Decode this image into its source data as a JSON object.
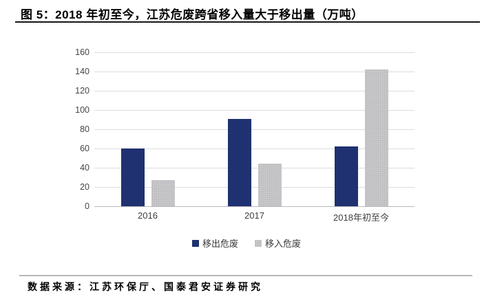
{
  "page": {
    "title": "图 5：2018 年初至今，江苏危废跨省移入量大于移出量（万吨）",
    "footer": "数据来源：江苏环保厅、国泰君安证券研究"
  },
  "colors": {
    "series_out": "#1F3170",
    "series_in": "#C6C6C9",
    "gridline": "#DCDCDC",
    "axis_line": "#B9B9BC",
    "axis_text": "#454545",
    "title_rule": "#161616"
  },
  "chart_data": {
    "type": "bar",
    "categories": [
      "2016",
      "2017",
      "2018年初至今"
    ],
    "series": [
      {
        "key": "out",
        "name": "移出危废",
        "color": "#1F3170",
        "values": [
          60,
          91,
          62
        ]
      },
      {
        "key": "in",
        "name": "移入危废",
        "color": "#C6C6C9",
        "values": [
          27,
          44,
          142
        ]
      }
    ],
    "ylim": [
      0,
      160
    ],
    "ytick_step": 20,
    "yticks": [
      0,
      20,
      40,
      60,
      80,
      100,
      120,
      140,
      160
    ],
    "grid": true,
    "legend_position": "bottom",
    "unit": "万吨"
  }
}
